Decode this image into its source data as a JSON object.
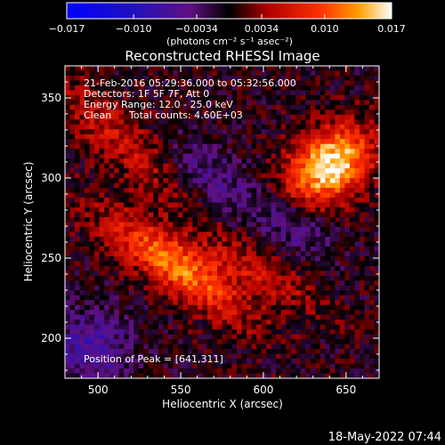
{
  "chart_data": {
    "type": "heatmap",
    "title": "Reconstructed RHESSI Image",
    "xlabel": "Heliocentric X (arcsec)",
    "ylabel": "Heliocentric Y (arcsec)",
    "xlim": [
      480,
      670
    ],
    "ylim": [
      175,
      370
    ],
    "xticks": [
      "500",
      "550",
      "600",
      "650"
    ],
    "yticks": [
      "200",
      "250",
      "300",
      "350"
    ],
    "colorbar": {
      "range": [
        -0.017,
        0.017
      ],
      "ticks": [
        "−0.017",
        "−0.010",
        "−0.0034",
        "0.0034",
        "0.010",
        "0.017"
      ],
      "unit_label": "(photons cm⁻² s⁻¹ asec⁻²)"
    },
    "annotations": {
      "time_range": "21-Feb-2016 05:29:36.000 to 05:32:56.000",
      "detectors": "Detectors: 1F 5F 7F, Att 0",
      "energy": "Energy Range: 12.0 - 25.0 keV",
      "clean": "Clean",
      "counts": "Total counts: 4.60E+03",
      "peak": "Position of Peak = [641,311]"
    },
    "peak": {
      "x": 641,
      "y": 311
    },
    "sources": [
      {
        "x": 640,
        "y": 308,
        "sx": 20,
        "sy": 14,
        "amp": 0.017,
        "angle": 40
      },
      {
        "x": 548,
        "y": 245,
        "sx": 36,
        "sy": 11,
        "amp": 0.012,
        "angle": -35
      },
      {
        "x": 600,
        "y": 240,
        "sx": 30,
        "sy": 8,
        "amp": 0.005,
        "angle": -30
      },
      {
        "x": 520,
        "y": 320,
        "sx": 45,
        "sy": 12,
        "amp": 0.006,
        "angle": -40
      },
      {
        "x": 495,
        "y": 195,
        "sx": 18,
        "sy": 16,
        "amp": -0.007,
        "angle": 0
      },
      {
        "x": 565,
        "y": 300,
        "sx": 25,
        "sy": 12,
        "amp": -0.006,
        "angle": -35
      },
      {
        "x": 620,
        "y": 270,
        "sx": 18,
        "sy": 10,
        "amp": -0.005,
        "angle": -30
      }
    ]
  },
  "footer": {
    "date": "18-May-2022 07:44"
  }
}
